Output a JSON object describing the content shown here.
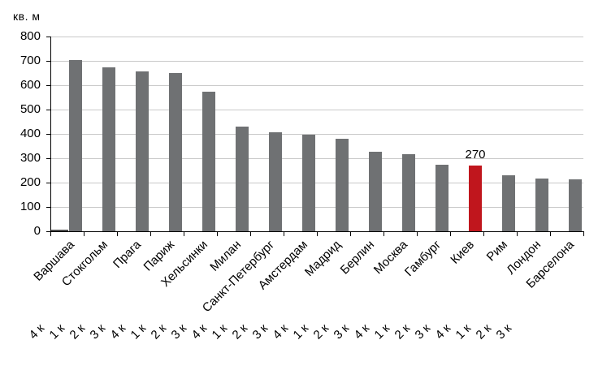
{
  "chart_data": {
    "type": "bar",
    "title": "",
    "ylabel": "кв. м",
    "xlabel": "",
    "ylim": [
      0,
      800
    ],
    "ytick_step": 100,
    "grid": "horizontal",
    "legend": "none",
    "categories": [
      "Варшава",
      "Стокгольм",
      "Прага",
      "Париж",
      "Хельсинки",
      "Милан",
      "Санкт-Петербург",
      "Амстердам",
      "Мадрид",
      "Берлин",
      "Москва",
      "Гамбург",
      "Киев",
      "Рим",
      "Лондон",
      "Барселона"
    ],
    "values": [
      705,
      672,
      656,
      651,
      573,
      431,
      406,
      396,
      380,
      328,
      317,
      274,
      270,
      230,
      217,
      215
    ],
    "highlight_index": 12,
    "highlight_category": "Киев",
    "data_labels": {
      "12": "270"
    },
    "leading_stub_value": 5,
    "bar_color": "#6f7173",
    "highlight_color": "#c0161d",
    "gridline_color": "#c9c9c9",
    "axis_color": "#000000",
    "bottom_axis_quarter_labels": [
      "4 к",
      "1 к",
      "2 к",
      "3 к",
      "4 к",
      "1 к",
      "2 к",
      "3 к",
      "4 к",
      "1 к",
      "2 к",
      "3 к",
      "4 к",
      "1 к",
      "2 к",
      "3 к",
      "4 к",
      "1 к",
      "2 к",
      "3 к",
      "4 к",
      "1 к",
      "2 к",
      "3 к"
    ]
  }
}
